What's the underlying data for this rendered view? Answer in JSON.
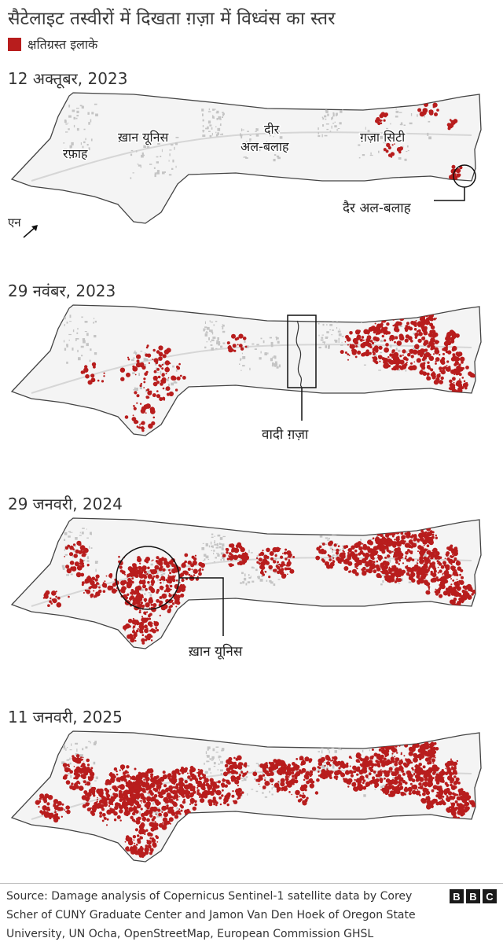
{
  "title": "सैटेलाइट तस्वीरों में दिखता ग़ज़ा में विध्वंस का स्तर",
  "legend": {
    "label": "क्षतिग्रस्त इलाके",
    "color": "#b81d1d"
  },
  "colors": {
    "damage": "#b81d1d",
    "urban": "#c4c4c4",
    "roads": "#d6d6d6",
    "outline": "#444444"
  },
  "panels": [
    {
      "date": "12 अक्तूबर, 2023",
      "damage_level": 0.02,
      "places": [
        "रफ़ाह",
        "ख़ान यूनिस",
        "दीर",
        "अल-बलाह",
        "ग़ज़ा सिटी"
      ],
      "callout": "दैर अल-बलाह",
      "north": "एन"
    },
    {
      "date": "29 नवंबर, 2023",
      "damage_level": 0.2,
      "callout": "वादी ग़ज़ा"
    },
    {
      "date": "29 जनवरी, 2024",
      "damage_level": 0.35,
      "callout": "ख़ान यूनिस"
    },
    {
      "date": "11 जनवरी, 2025",
      "damage_level": 0.55
    }
  ],
  "source": "Source: Damage analysis of Copernicus Sentinel-1 satellite data by Corey Scher of CUNY Graduate Center and Jamon Van Den Hoek of Oregon State University, UN Ocha, OpenStreetMap, European Commission GHSL",
  "logo": [
    "B",
    "B",
    "C"
  ]
}
